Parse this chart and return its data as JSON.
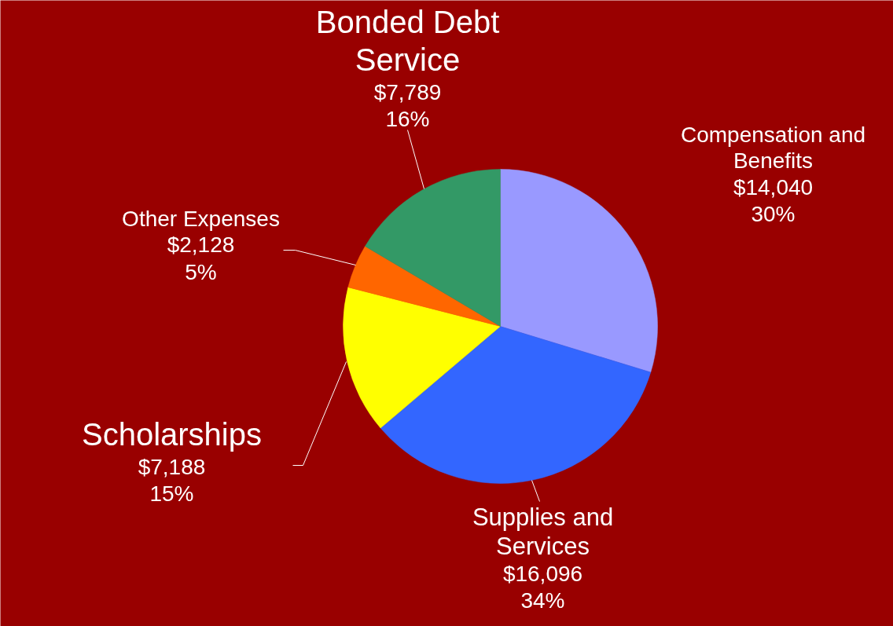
{
  "chart_data": {
    "type": "pie",
    "categories": [
      "Compensation and Benefits",
      "Supplies and Services",
      "Scholarships",
      "Other Expenses",
      "Bonded Debt Service"
    ],
    "values": [
      14040,
      16096,
      7188,
      2128,
      7789
    ],
    "value_labels": [
      "$14,040\n30%",
      "$16,096\n34%",
      "$7,188\n15%",
      "$2,128\n5%",
      "$7,789\n16%"
    ],
    "colors": [
      "#9999ff",
      "#3366ff",
      "#ffff00",
      "#ff6600",
      "#339966"
    ]
  }
}
